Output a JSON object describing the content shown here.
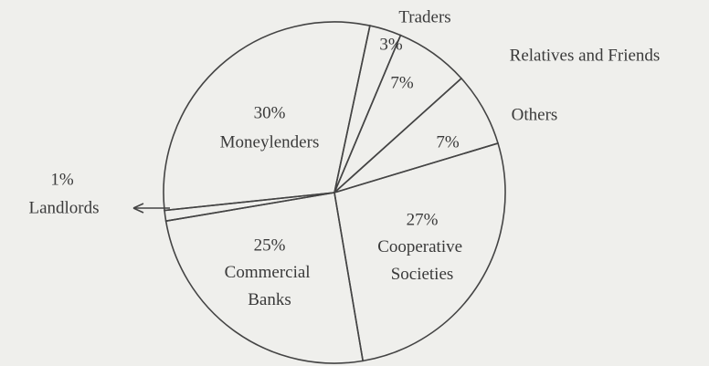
{
  "chart_data": {
    "type": "pie",
    "categories": [
      "Traders",
      "Relatives and Friends",
      "Others",
      "Cooperative Societies",
      "Commercial Banks",
      "Landlords",
      "Moneylenders"
    ],
    "values": [
      3,
      7,
      7,
      27,
      25,
      1,
      30
    ],
    "value_labels": [
      "3%",
      "7%",
      "7%",
      "27%",
      "25%",
      "1%",
      "30%"
    ],
    "color": "none"
  }
}
